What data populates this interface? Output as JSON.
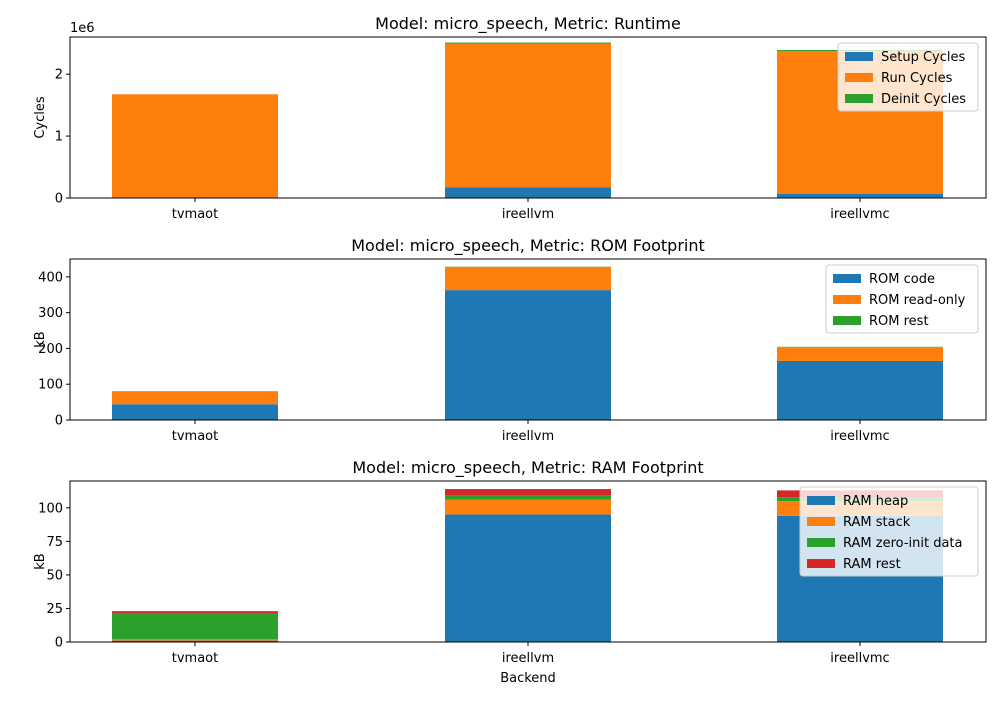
{
  "colors": {
    "blue": "#1f77b4",
    "orange": "#ff7f0e",
    "green": "#2ca02c",
    "red": "#d62728"
  },
  "chart_data": [
    {
      "type": "bar",
      "stacked": true,
      "title": "Model: micro_speech, Metric: Runtime",
      "xlabel": "",
      "ylabel": "Cycles",
      "offset_text": "1e6",
      "categories": [
        "tvmaot",
        "ireellvm",
        "ireellvmc"
      ],
      "ylim": [
        0,
        2600000
      ],
      "yticks": [
        0,
        1000000,
        2000000
      ],
      "ytick_labels": [
        "0",
        "1",
        "2"
      ],
      "grid": false,
      "legend_position": "upper-right",
      "series": [
        {
          "name": "Setup Cycles",
          "color": "#1f77b4",
          "values": [
            5000,
            170000,
            70000
          ]
        },
        {
          "name": "Run Cycles",
          "color": "#ff7f0e",
          "values": [
            1670000,
            2320000,
            2300000
          ]
        },
        {
          "name": "Deinit Cycles",
          "color": "#2ca02c",
          "values": [
            0,
            20000,
            20000
          ]
        }
      ]
    },
    {
      "type": "bar",
      "stacked": true,
      "title": "Model: micro_speech, Metric: ROM Footprint",
      "xlabel": "",
      "ylabel": "kB",
      "categories": [
        "tvmaot",
        "ireellvm",
        "ireellvmc"
      ],
      "ylim": [
        0,
        450
      ],
      "yticks": [
        0,
        100,
        200,
        300,
        400
      ],
      "ytick_labels": [
        "0",
        "100",
        "200",
        "300",
        "400"
      ],
      "grid": false,
      "legend_position": "upper-right",
      "series": [
        {
          "name": "ROM code",
          "color": "#1f77b4",
          "values": [
            44,
            363,
            165
          ]
        },
        {
          "name": "ROM read-only",
          "color": "#ff7f0e",
          "values": [
            36,
            65,
            39
          ]
        },
        {
          "name": "ROM rest",
          "color": "#2ca02c",
          "values": [
            0.5,
            0.5,
            0.5
          ]
        }
      ]
    },
    {
      "type": "bar",
      "stacked": true,
      "title": "Model: micro_speech, Metric: RAM Footprint",
      "xlabel": "Backend",
      "ylabel": "kB",
      "categories": [
        "tvmaot",
        "ireellvm",
        "ireellvmc"
      ],
      "ylim": [
        0,
        120
      ],
      "yticks": [
        0,
        25,
        50,
        75,
        100
      ],
      "ytick_labels": [
        "0",
        "25",
        "50",
        "75",
        "100"
      ],
      "grid": false,
      "legend_position": "upper-right",
      "series": [
        {
          "name": "RAM heap",
          "color": "#1f77b4",
          "values": [
            1,
            95,
            94
          ]
        },
        {
          "name": "RAM stack",
          "color": "#ff7f0e",
          "values": [
            1,
            11,
            11
          ]
        },
        {
          "name": "RAM zero-init data",
          "color": "#2ca02c",
          "values": [
            19,
            3,
            3
          ]
        },
        {
          "name": "RAM rest",
          "color": "#d62728",
          "values": [
            2,
            5,
            5
          ]
        }
      ]
    }
  ]
}
